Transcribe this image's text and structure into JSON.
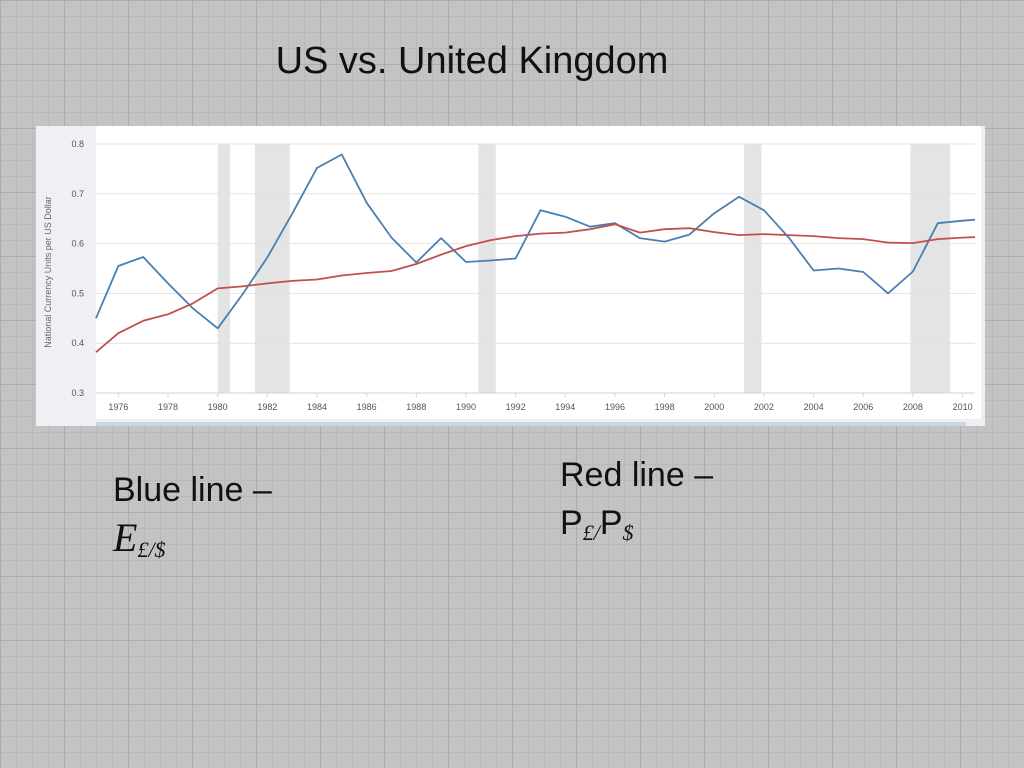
{
  "slide": {
    "title": "US vs. United Kingdom",
    "blue_caption": {
      "label": "Blue line –",
      "symbol": "E",
      "subscript": "£/$"
    },
    "red_caption": {
      "label": "Red line –",
      "p1": "P",
      "sub1": "£/",
      "p2": "P",
      "sub2": "$"
    }
  },
  "chart_data": {
    "type": "line",
    "ylabel": "National Currency Units per US Dollar",
    "ylim": [
      0.3,
      0.8
    ],
    "yticks": [
      0.3,
      0.4,
      0.5,
      0.6,
      0.7,
      0.8
    ],
    "xlim": [
      1975.1,
      2010.5
    ],
    "xticks": [
      1976,
      1978,
      1980,
      1982,
      1984,
      1986,
      1988,
      1990,
      1992,
      1994,
      1996,
      1998,
      2000,
      2002,
      2004,
      2006,
      2008,
      2010
    ],
    "grid": true,
    "recessions": [
      [
        1980.0,
        1980.5
      ],
      [
        1981.5,
        1982.9
      ],
      [
        1990.5,
        1991.2
      ],
      [
        2001.2,
        2001.9
      ],
      [
        2007.9,
        2009.5
      ]
    ],
    "series": [
      {
        "color": "#4a7fb0",
        "x": [
          1975.1,
          1976,
          1977,
          1978,
          1979,
          1980,
          1981,
          1982,
          1983,
          1984,
          1985,
          1986,
          1987,
          1988,
          1989,
          1990,
          1991,
          1992,
          1993,
          1994,
          1995,
          1996,
          1997,
          1998,
          1999,
          2000,
          2001,
          2002,
          2003,
          2004,
          2005,
          2006,
          2007,
          2008,
          2009,
          2010,
          2010.5
        ],
        "values": [
          0.45,
          0.555,
          0.573,
          0.52,
          0.47,
          0.43,
          0.498,
          0.572,
          0.66,
          0.752,
          0.779,
          0.682,
          0.612,
          0.562,
          0.611,
          0.563,
          0.566,
          0.57,
          0.667,
          0.654,
          0.634,
          0.641,
          0.611,
          0.604,
          0.618,
          0.661,
          0.694,
          0.667,
          0.612,
          0.546,
          0.55,
          0.543,
          0.5,
          0.544,
          0.641,
          0.646,
          0.648
        ]
      },
      {
        "color": "#c0504d",
        "x": [
          1975.1,
          1976,
          1977,
          1978,
          1979,
          1980,
          1981,
          1982,
          1983,
          1984,
          1985,
          1986,
          1987,
          1988,
          1989,
          1990,
          1991,
          1992,
          1993,
          1994,
          1995,
          1996,
          1997,
          1998,
          1999,
          2000,
          2001,
          2002,
          2003,
          2004,
          2005,
          2006,
          2007,
          2008,
          2009,
          2010,
          2010.5
        ],
        "values": [
          0.382,
          0.42,
          0.445,
          0.458,
          0.48,
          0.51,
          0.514,
          0.52,
          0.525,
          0.528,
          0.536,
          0.541,
          0.545,
          0.559,
          0.578,
          0.595,
          0.607,
          0.615,
          0.62,
          0.622,
          0.629,
          0.639,
          0.622,
          0.629,
          0.631,
          0.623,
          0.617,
          0.619,
          0.617,
          0.615,
          0.611,
          0.609,
          0.602,
          0.601,
          0.609,
          0.612,
          0.613
        ]
      }
    ]
  }
}
